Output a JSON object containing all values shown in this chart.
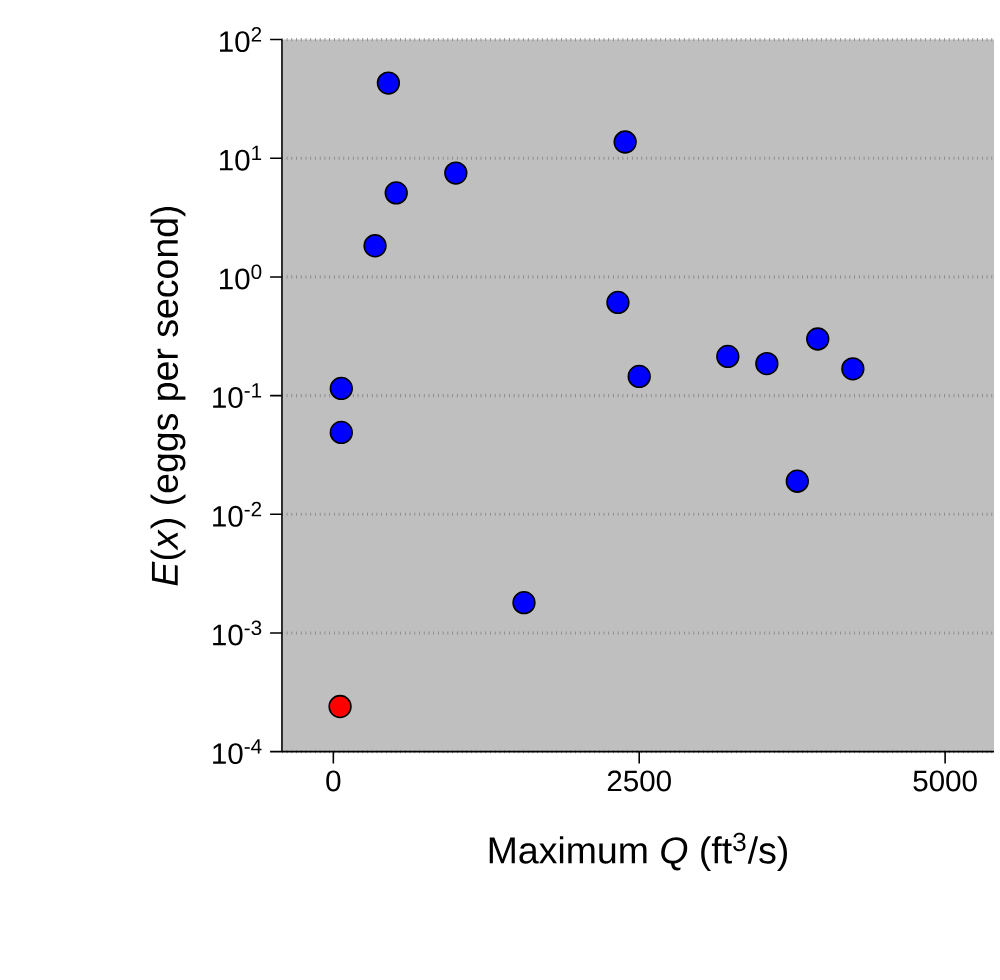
{
  "chart_data": {
    "type": "scatter",
    "xlabel": "Maximum *Q* (ft$^{3}$/s)",
    "ylabel": "*E*(*x*) (eggs per second)",
    "log": "y",
    "grid": "y",
    "marker": "circle",
    "xlim": [
      -420,
      5400
    ],
    "xticks": [
      0,
      2500,
      5000
    ],
    "ylim": [
      0.0001,
      100
    ],
    "yticks": [
      {
        "value": 0.0001,
        "label": "10$^{-4}$"
      },
      {
        "value": 0.001,
        "label": "10$^{-3}$"
      },
      {
        "value": 0.01,
        "label": "10$^{-2}$"
      },
      {
        "value": 0.1,
        "label": "10$^{-1}$"
      },
      {
        "value": 1,
        "label": "10$^{0}$"
      },
      {
        "value": 10,
        "label": "10$^{1}$"
      },
      {
        "value": 100,
        "label": "10$^{2}$"
      }
    ],
    "series": [
      {
        "color": "#0000ff",
        "x": [
          450,
          2385,
          514,
          1001,
          341,
          2326,
          2500,
          3224,
          3543,
          3959,
          4246,
          65,
          65,
          3792,
          1558
        ],
        "values": [
          43,
          13.7,
          5.1,
          7.5,
          1.83,
          0.61,
          0.145,
          0.214,
          0.186,
          0.3,
          0.168,
          0.115,
          0.049,
          0.019,
          0.0018
        ]
      },
      {
        "color": "#ff0000",
        "x": [
          55
        ],
        "values": [
          0.00024
        ]
      }
    ]
  }
}
